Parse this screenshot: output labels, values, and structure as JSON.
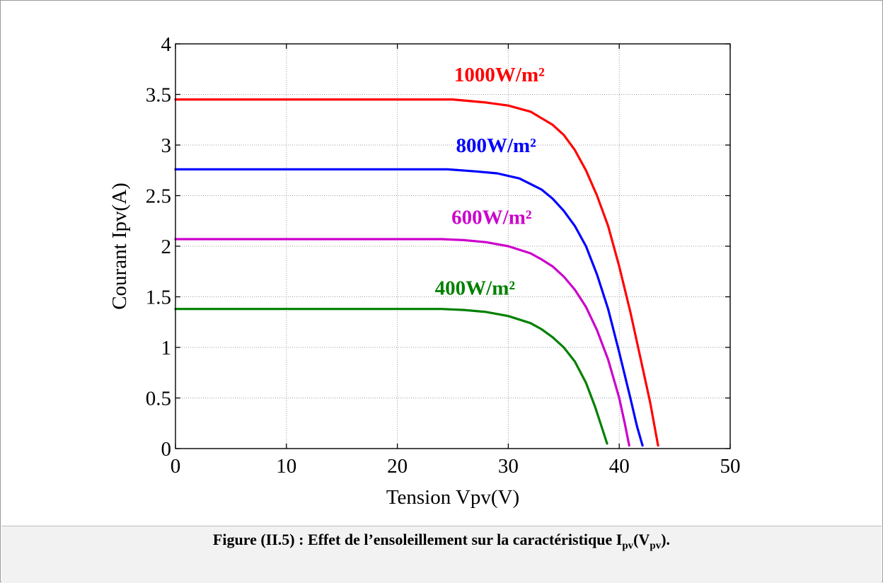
{
  "chart_data": {
    "type": "line",
    "xlabel": "Tension Vpv(V)",
    "ylabel": "Courant Ipv(A)",
    "xlim": [
      0,
      50
    ],
    "ylim": [
      0,
      4
    ],
    "xticks": [
      0,
      10,
      20,
      30,
      40,
      50
    ],
    "yticks": [
      0,
      0.5,
      1,
      1.5,
      2,
      2.5,
      3,
      3.5,
      4
    ],
    "xtick_labels": [
      "0",
      "10",
      "20",
      "30",
      "40",
      "50"
    ],
    "ytick_labels": [
      "0",
      "0.5",
      "1",
      "1.5",
      "2",
      "2.5",
      "3",
      "3.5",
      "4"
    ],
    "grid": true,
    "series": [
      {
        "name": "1000W/m²",
        "color": "#ff0000",
        "x": [
          0,
          25,
          28,
          30,
          32,
          34,
          35,
          36,
          37,
          38,
          39,
          40,
          41,
          42,
          42.8,
          43.3,
          43.5
        ],
        "y": [
          3.45,
          3.45,
          3.42,
          3.39,
          3.33,
          3.2,
          3.1,
          2.95,
          2.75,
          2.5,
          2.2,
          1.8,
          1.35,
          0.85,
          0.45,
          0.15,
          0.03
        ]
      },
      {
        "name": "800W/m²",
        "color": "#0000ff",
        "x": [
          0,
          24.5,
          27,
          29,
          31,
          33,
          34,
          35,
          36,
          37,
          38,
          39,
          40,
          41,
          41.6,
          42.1
        ],
        "y": [
          2.76,
          2.76,
          2.74,
          2.72,
          2.67,
          2.56,
          2.47,
          2.35,
          2.2,
          2.0,
          1.72,
          1.38,
          0.95,
          0.5,
          0.22,
          0.03
        ]
      },
      {
        "name": "600W/m²",
        "color": "#cc00cc",
        "x": [
          0,
          24,
          26,
          28,
          30,
          32,
          33,
          34,
          35,
          36,
          37,
          38,
          39,
          40,
          40.5,
          40.9
        ],
        "y": [
          2.07,
          2.07,
          2.06,
          2.04,
          2.0,
          1.93,
          1.87,
          1.8,
          1.7,
          1.57,
          1.4,
          1.17,
          0.88,
          0.5,
          0.25,
          0.03
        ]
      },
      {
        "name": "400W/m²",
        "color": "#008000",
        "x": [
          0,
          24,
          26,
          28,
          30,
          32,
          33,
          34,
          35,
          36,
          37,
          37.8,
          38.4,
          38.9
        ],
        "y": [
          1.38,
          1.38,
          1.37,
          1.35,
          1.31,
          1.24,
          1.18,
          1.1,
          1.0,
          0.86,
          0.65,
          0.42,
          0.22,
          0.05
        ]
      }
    ],
    "annotations": [
      {
        "text": "1000W/m²",
        "x": 29.2,
        "y": 3.7,
        "color": "#ff0000"
      },
      {
        "text": "800W/m²",
        "x": 28.9,
        "y": 3.0,
        "color": "#0000ff"
      },
      {
        "text": "600W/m²",
        "x": 28.5,
        "y": 2.29,
        "color": "#cc00cc"
      },
      {
        "text": "400W/m²",
        "x": 27.0,
        "y": 1.59,
        "color": "#008000"
      }
    ]
  },
  "caption": {
    "prefix": "Figure (II.5) : Effet de l’ensoleillement sur la caractéristique I",
    "sub1": "pv",
    "middle": "(V",
    "sub2": "pv",
    "suffix": ")."
  }
}
